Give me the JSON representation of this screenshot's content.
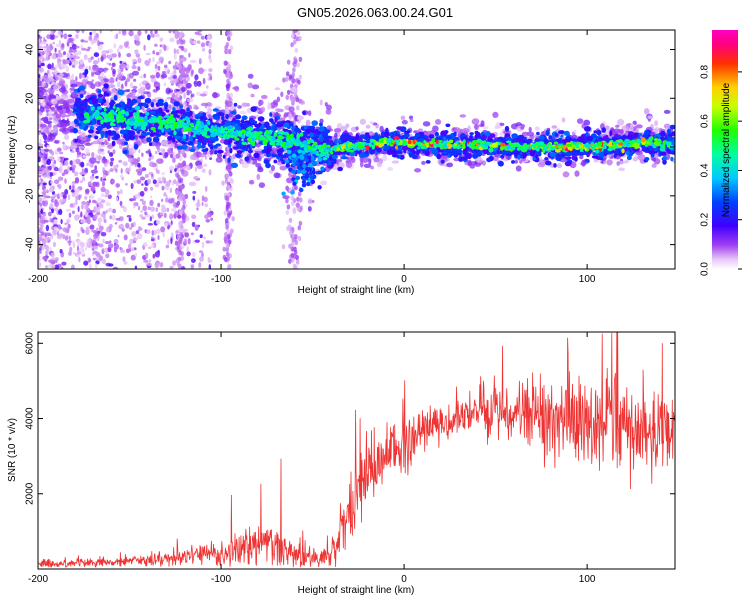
{
  "figure_title": "GN05.2026.063.00.24.G01",
  "colors": {
    "snr_line": "#ee3333",
    "axis": "#000000",
    "background": "#ffffff"
  },
  "chart_data": [
    {
      "type": "heatmap",
      "title": "GN05.2026.063.00.24.G01",
      "xlabel": "Height of straight line (km)",
      "ylabel": "Frequency (Hz)",
      "xlim": [
        -200,
        148
      ],
      "ylim": [
        -50,
        48
      ],
      "xticks": [
        -200,
        -100,
        0,
        100
      ],
      "xtick_labels": [
        "-200",
        "-100",
        "0",
        "100"
      ],
      "yticks": [
        -40,
        -20,
        0,
        20,
        40
      ],
      "ytick_labels": [
        "-40",
        "-20",
        "0",
        "20",
        "40"
      ],
      "colorbar": {
        "label": "Normalized spectral amplitude",
        "range": [
          0,
          0.97
        ],
        "ticks": [
          0.0,
          0.2,
          0.4,
          0.6,
          0.8
        ],
        "tick_labels": [
          "0.0",
          "0.2",
          "0.4",
          "0.6",
          "0.8"
        ],
        "colormap": "rainbow (violet-blue-cyan-green-yellow-red-magenta)"
      },
      "ridge": {
        "description": "Dominant frequency ridge vs height",
        "x": [
          -200,
          -180,
          -165,
          -150,
          -130,
          -110,
          -90,
          -75,
          -60,
          -50,
          -40,
          -30,
          -20,
          -10,
          0,
          10,
          20,
          40,
          60,
          80,
          100,
          120,
          130,
          148
        ],
        "y": [
          18,
          14,
          13,
          11,
          10,
          7,
          5,
          4,
          2,
          0,
          -1,
          0,
          1,
          2,
          2,
          1,
          1,
          1,
          0,
          0,
          0,
          1,
          2,
          1
        ]
      }
    },
    {
      "type": "line",
      "xlabel": "Height of straight line (km)",
      "ylabel": "SNR (10 * v/v)",
      "xlim": [
        -200,
        148
      ],
      "ylim": [
        0,
        6300
      ],
      "xticks": [
        -200,
        -100,
        0,
        100
      ],
      "xtick_labels": [
        "-200",
        "-100",
        "0",
        "100"
      ],
      "yticks": [
        2000,
        4000,
        6000
      ],
      "ytick_labels": [
        "2000",
        "4000",
        "6000"
      ],
      "series": [
        {
          "name": "SNR",
          "x": [
            -200,
            -180,
            -160,
            -140,
            -120,
            -110,
            -100,
            -90,
            -80,
            -70,
            -60,
            -50,
            -40,
            -35,
            -30,
            -25,
            -20,
            -15,
            -10,
            -5,
            0,
            10,
            20,
            30,
            40,
            50,
            60,
            70,
            80,
            90,
            100,
            110,
            120,
            130,
            140,
            148
          ],
          "y": [
            150,
            150,
            200,
            220,
            300,
            380,
            450,
            550,
            700,
            600,
            400,
            300,
            350,
            900,
            1700,
            2100,
            2500,
            2700,
            3000,
            3200,
            3400,
            3700,
            3900,
            4000,
            4050,
            4100,
            4100,
            4100,
            4050,
            4000,
            3950,
            3900,
            3800,
            3700,
            3600,
            3500
          ],
          "noise_amplitude": [
            120,
            120,
            140,
            160,
            220,
            280,
            350,
            420,
            550,
            500,
            380,
            250,
            300,
            700,
            900,
            900,
            850,
            800,
            800,
            750,
            700,
            550,
            450,
            450,
            500,
            600,
            750,
            900,
            1000,
            1100,
            1150,
            1200,
            1250,
            1200,
            1150,
            1100
          ]
        }
      ]
    }
  ]
}
